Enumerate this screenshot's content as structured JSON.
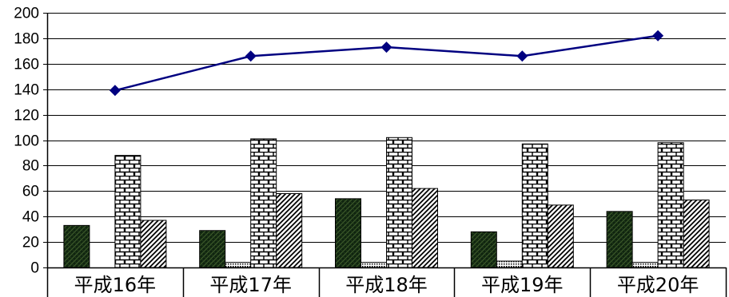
{
  "chart_data": {
    "type": "bar",
    "categories": [
      "平成16年",
      "平成17年",
      "平成18年",
      "平成19年",
      "平成20年"
    ],
    "ylim": [
      0,
      200
    ],
    "yticks": [
      0,
      20,
      40,
      60,
      80,
      100,
      120,
      140,
      160,
      180,
      200
    ],
    "grid": true,
    "legend": "none",
    "series": [
      {
        "type": "bar",
        "pattern": "dark-weave",
        "values": [
          33,
          29,
          54,
          28,
          44
        ]
      },
      {
        "type": "bar",
        "pattern": "dots",
        "values": [
          0,
          4,
          4,
          5,
          4
        ]
      },
      {
        "type": "bar",
        "pattern": "brick",
        "values": [
          88,
          101,
          102,
          97,
          98
        ]
      },
      {
        "type": "bar",
        "pattern": "diagonal",
        "values": [
          37,
          58,
          62,
          49,
          53
        ]
      },
      {
        "type": "line",
        "marker": "diamond",
        "color": "#000080",
        "values": [
          139,
          166,
          173,
          166,
          182
        ]
      }
    ]
  }
}
